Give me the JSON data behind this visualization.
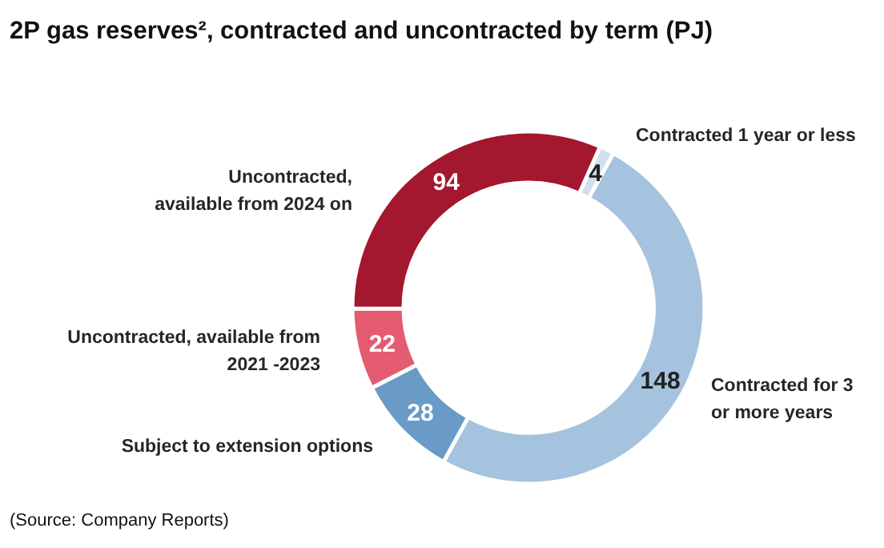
{
  "chart_data": {
    "type": "donut",
    "title": "2P gas reserves², contracted and uncontracted by term (PJ)",
    "categories": [
      "Contracted 1 year or less",
      "Contracted for 3 or more years",
      "Subject to extension options",
      "Uncontracted, available from 2021 -2023",
      "Uncontracted, available from 2024 on"
    ],
    "values": [
      4,
      148,
      28,
      22,
      94
    ],
    "colors": [
      "#cfe0ef",
      "#a5c3de",
      "#6a9bc6",
      "#e45b72",
      "#a3172f"
    ],
    "data_labels": true,
    "annotations": [
      "(Source: Company Reports)"
    ]
  }
}
